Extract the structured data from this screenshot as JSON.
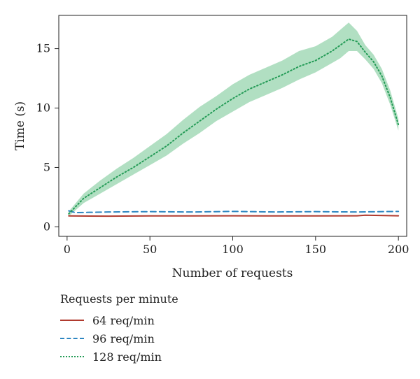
{
  "chart_data": {
    "type": "line",
    "title": "",
    "xlabel": "Number of requests",
    "ylabel": "Time (s)",
    "xlim": [
      -5,
      205
    ],
    "ylim": [
      -0.8,
      17.8
    ],
    "xticks": [
      0,
      50,
      100,
      150,
      200
    ],
    "yticks": [
      0,
      5,
      10,
      15
    ],
    "grid": false,
    "legend": {
      "title": "Requests per minute",
      "placement": "below"
    },
    "series": [
      {
        "name": "64 req/min",
        "color": "#b03a2e",
        "style": "solid",
        "x": [
          1,
          25,
          50,
          75,
          100,
          125,
          150,
          175,
          180,
          200
        ],
        "y": [
          0.92,
          0.9,
          0.92,
          0.92,
          0.93,
          0.92,
          0.92,
          0.93,
          0.98,
          0.93
        ]
      },
      {
        "name": "96 req/min",
        "color": "#2e86c1",
        "style": "dashed",
        "x": [
          1,
          5,
          25,
          50,
          75,
          100,
          125,
          150,
          175,
          200
        ],
        "y": [
          1.35,
          1.2,
          1.25,
          1.28,
          1.25,
          1.3,
          1.25,
          1.28,
          1.25,
          1.3
        ]
      },
      {
        "name": "128 req/min",
        "color": "#239b56",
        "band_color": "#7dc99a",
        "style": "dotted",
        "x": [
          1,
          10,
          20,
          30,
          40,
          50,
          60,
          70,
          80,
          90,
          100,
          110,
          120,
          130,
          140,
          150,
          160,
          165,
          170,
          175,
          180,
          185,
          190,
          195,
          200
        ],
        "y": [
          1.1,
          2.4,
          3.3,
          4.2,
          5.0,
          5.9,
          6.8,
          7.9,
          8.9,
          9.9,
          10.8,
          11.6,
          12.2,
          12.8,
          13.5,
          14.0,
          14.8,
          15.3,
          15.8,
          15.6,
          14.7,
          13.9,
          12.7,
          10.9,
          8.6
        ],
        "band_lower": [
          0.9,
          2.0,
          2.8,
          3.6,
          4.4,
          5.2,
          6.0,
          7.0,
          7.9,
          8.9,
          9.7,
          10.5,
          11.1,
          11.7,
          12.4,
          13.0,
          13.8,
          14.2,
          14.8,
          14.8,
          14.1,
          13.3,
          12.1,
          10.3,
          8.1
        ],
        "band_upper": [
          1.3,
          2.8,
          3.9,
          4.9,
          5.8,
          6.8,
          7.8,
          9.0,
          10.1,
          11.0,
          12.0,
          12.8,
          13.4,
          14.0,
          14.8,
          15.2,
          16.0,
          16.6,
          17.2,
          16.5,
          15.3,
          14.5,
          13.3,
          11.5,
          9.1
        ]
      }
    ]
  }
}
